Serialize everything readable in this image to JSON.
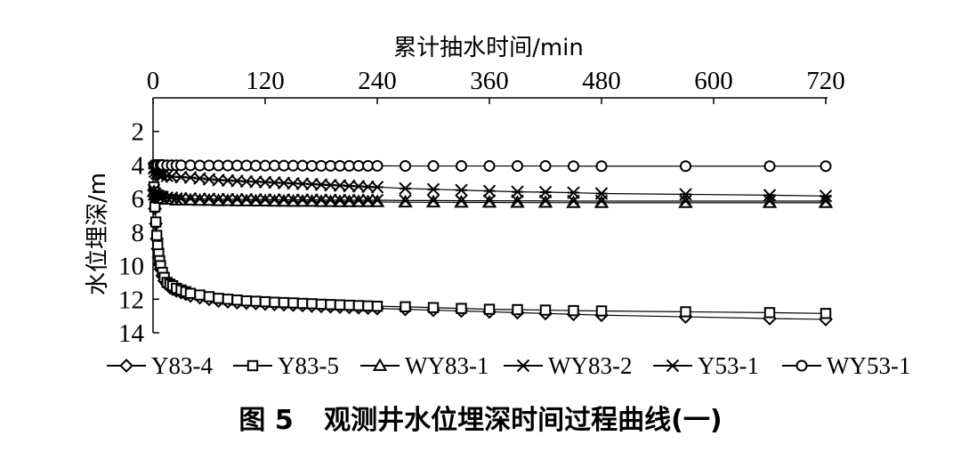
{
  "caption": {
    "figure_no": "图 5",
    "title": "观测井水位埋深时间过程曲线(一)"
  },
  "chart_data": {
    "type": "line",
    "xlabel": "累计抽水时间/min",
    "ylabel": "水位埋深/m",
    "x_axis_position": "top",
    "y_axis_inverted": true,
    "xlim": [
      0,
      720
    ],
    "ylim": [
      0,
      14
    ],
    "x_ticks": [
      "0",
      "120",
      "240",
      "360",
      "480",
      "600",
      "720"
    ],
    "y_ticks": [
      "2",
      "4",
      "6",
      "8",
      "10",
      "12",
      "14"
    ],
    "legend_position": "bottom",
    "series": [
      {
        "name": "Y83-4",
        "marker": "diamond",
        "x": [
          1,
          2,
          3,
          4,
          5,
          6,
          7,
          8,
          10,
          12,
          15,
          18,
          21,
          25,
          30,
          35,
          40,
          50,
          60,
          70,
          80,
          90,
          100,
          110,
          120,
          130,
          140,
          150,
          160,
          170,
          180,
          190,
          200,
          210,
          220,
          230,
          240,
          270,
          300,
          330,
          360,
          390,
          420,
          450,
          480,
          570,
          660,
          720
        ],
        "y": [
          5.5,
          6.6,
          7.5,
          8.4,
          9.0,
          9.5,
          9.9,
          10.2,
          10.6,
          10.9,
          11.1,
          11.3,
          11.4,
          11.5,
          11.6,
          11.7,
          11.8,
          11.9,
          12.0,
          12.1,
          12.15,
          12.2,
          12.22,
          12.25,
          12.28,
          12.3,
          12.32,
          12.35,
          12.37,
          12.4,
          12.42,
          12.44,
          12.46,
          12.48,
          12.5,
          12.52,
          12.55,
          12.6,
          12.65,
          12.7,
          12.75,
          12.8,
          12.85,
          12.9,
          12.95,
          13.05,
          13.15,
          13.2
        ]
      },
      {
        "name": "Y83-5",
        "marker": "square",
        "x": [
          1,
          2,
          3,
          4,
          5,
          6,
          7,
          8,
          10,
          12,
          15,
          18,
          21,
          25,
          30,
          35,
          40,
          50,
          60,
          70,
          80,
          90,
          100,
          110,
          120,
          130,
          140,
          150,
          160,
          170,
          180,
          190,
          200,
          210,
          220,
          230,
          240,
          270,
          300,
          330,
          360,
          390,
          420,
          450,
          480,
          570,
          660,
          720
        ],
        "y": [
          5.3,
          6.5,
          7.4,
          8.2,
          8.8,
          9.3,
          9.7,
          10.0,
          10.4,
          10.7,
          11.0,
          11.1,
          11.2,
          11.35,
          11.45,
          11.55,
          11.65,
          11.75,
          11.85,
          11.95,
          12.0,
          12.05,
          12.1,
          12.12,
          12.15,
          12.18,
          12.2,
          12.22,
          12.25,
          12.27,
          12.3,
          12.32,
          12.34,
          12.36,
          12.38,
          12.4,
          12.42,
          12.45,
          12.5,
          12.55,
          12.6,
          12.62,
          12.65,
          12.68,
          12.7,
          12.75,
          12.8,
          12.85
        ]
      },
      {
        "name": "WY83-1",
        "marker": "triangle",
        "x": [
          1,
          2,
          4,
          6,
          8,
          10,
          15,
          20,
          25,
          30,
          40,
          50,
          60,
          70,
          80,
          90,
          100,
          110,
          120,
          130,
          140,
          150,
          160,
          170,
          180,
          190,
          200,
          210,
          220,
          230,
          240,
          270,
          300,
          330,
          360,
          390,
          420,
          450,
          480,
          570,
          660,
          720
        ],
        "y": [
          5.6,
          5.8,
          5.9,
          5.95,
          6.0,
          6.0,
          6.05,
          6.05,
          6.1,
          6.1,
          6.1,
          6.12,
          6.12,
          6.14,
          6.14,
          6.15,
          6.15,
          6.16,
          6.16,
          6.17,
          6.17,
          6.18,
          6.18,
          6.18,
          6.19,
          6.19,
          6.2,
          6.2,
          6.2,
          6.2,
          6.2,
          6.22,
          6.22,
          6.23,
          6.23,
          6.24,
          6.24,
          6.25,
          6.25,
          6.25,
          6.25,
          6.25
        ]
      },
      {
        "name": "WY83-2",
        "marker": "x",
        "x": [
          1,
          2,
          4,
          6,
          8,
          10,
          15,
          20,
          25,
          30,
          40,
          50,
          60,
          70,
          80,
          90,
          100,
          110,
          120,
          130,
          140,
          150,
          160,
          170,
          180,
          190,
          200,
          210,
          220,
          230,
          240,
          270,
          300,
          330,
          360,
          390,
          420,
          450,
          480,
          570,
          660,
          720
        ],
        "y": [
          5.5,
          5.7,
          5.8,
          5.85,
          5.9,
          5.9,
          5.95,
          5.95,
          6.0,
          6.0,
          6.0,
          6.02,
          6.02,
          6.04,
          6.04,
          6.05,
          6.05,
          6.06,
          6.06,
          6.07,
          6.07,
          6.08,
          6.08,
          6.08,
          6.09,
          6.09,
          6.1,
          6.1,
          6.1,
          6.1,
          6.1,
          6.12,
          6.12,
          6.13,
          6.13,
          6.14,
          6.14,
          6.15,
          6.15,
          6.15,
          6.15,
          6.15
        ]
      },
      {
        "name": "Y53-1",
        "marker": "asterisk",
        "x": [
          1,
          2,
          4,
          6,
          8,
          10,
          15,
          20,
          30,
          40,
          50,
          60,
          70,
          80,
          90,
          100,
          110,
          120,
          130,
          140,
          150,
          160,
          170,
          180,
          190,
          200,
          210,
          220,
          230,
          240,
          270,
          300,
          330,
          360,
          390,
          420,
          450,
          480,
          570,
          660,
          720
        ],
        "y": [
          4.2,
          4.4,
          4.5,
          4.55,
          4.6,
          4.62,
          4.65,
          4.7,
          4.72,
          4.75,
          4.8,
          4.85,
          4.9,
          4.92,
          4.95,
          4.98,
          5.0,
          5.02,
          5.05,
          5.07,
          5.1,
          5.12,
          5.14,
          5.17,
          5.2,
          5.22,
          5.25,
          5.27,
          5.3,
          5.32,
          5.4,
          5.45,
          5.5,
          5.55,
          5.6,
          5.62,
          5.65,
          5.7,
          5.75,
          5.8,
          5.85
        ]
      },
      {
        "name": "WY53-1",
        "marker": "circle",
        "x": [
          1,
          3,
          5,
          8,
          10,
          15,
          20,
          25,
          30,
          40,
          50,
          60,
          70,
          80,
          90,
          100,
          110,
          120,
          130,
          140,
          150,
          160,
          170,
          180,
          190,
          200,
          210,
          220,
          230,
          240,
          270,
          300,
          330,
          360,
          390,
          420,
          450,
          480,
          570,
          660,
          720
        ],
        "y": [
          4.0,
          4.0,
          4.0,
          4.0,
          4.0,
          4.02,
          4.02,
          4.02,
          4.02,
          4.02,
          4.03,
          4.03,
          4.03,
          4.03,
          4.03,
          4.03,
          4.04,
          4.04,
          4.04,
          4.04,
          4.04,
          4.04,
          4.05,
          4.05,
          4.05,
          4.05,
          4.05,
          4.05,
          4.05,
          4.05,
          4.06,
          4.06,
          4.06,
          4.06,
          4.06,
          4.06,
          4.07,
          4.07,
          4.07,
          4.07,
          4.07
        ]
      }
    ]
  }
}
